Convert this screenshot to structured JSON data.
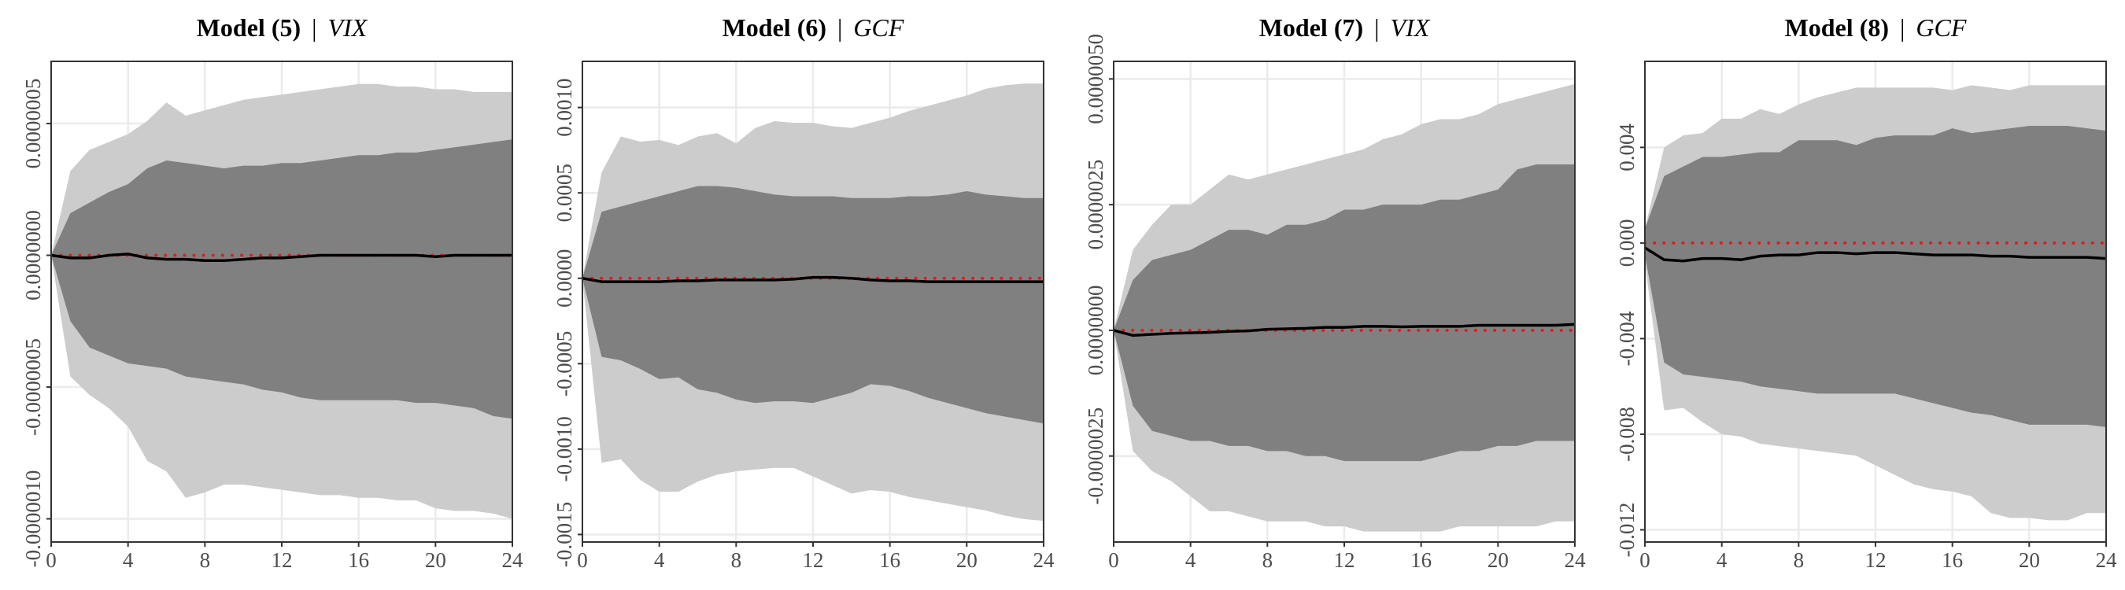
{
  "chart_data": [
    {
      "type": "band",
      "title": "Model (5)",
      "title_separator": "|",
      "title_variable": "VIX",
      "x": [
        0,
        1,
        2,
        3,
        4,
        5,
        6,
        7,
        8,
        9,
        10,
        11,
        12,
        13,
        14,
        15,
        16,
        17,
        18,
        19,
        20,
        21,
        22,
        23,
        24
      ],
      "xlim": [
        0,
        24
      ],
      "xticks": [
        0,
        4,
        8,
        12,
        16,
        20,
        24
      ],
      "ylim": [
        -1.088e-06,
        7.36e-07
      ],
      "yticks": [
        {
          "value": -1e-06,
          "label": "-0.0000010"
        },
        {
          "value": -5e-07,
          "label": "-0.0000005"
        },
        {
          "value": 0,
          "label": "0.0000000"
        },
        {
          "value": 5e-07,
          "label": "0.0000005"
        }
      ],
      "grid": true,
      "reference_line": 0,
      "reference_color": "#e41a1c",
      "series": [
        {
          "color": "#cccccc",
          "upper": [
            0,
            3.2e-07,
            4e-07,
            4.3e-07,
            4.6e-07,
            5.1e-07,
            5.8e-07,
            5.3e-07,
            5.5e-07,
            5.7e-07,
            5.9e-07,
            6e-07,
            6.1e-07,
            6.2e-07,
            6.3e-07,
            6.4e-07,
            6.5e-07,
            6.5e-07,
            6.4e-07,
            6.4e-07,
            6.3e-07,
            6.3e-07,
            6.2e-07,
            6.2e-07,
            6.2e-07
          ],
          "lower": [
            0,
            -4.6e-07,
            -5.3e-07,
            -5.8e-07,
            -6.5e-07,
            -7.8e-07,
            -8.2e-07,
            -9.2e-07,
            -9e-07,
            -8.7e-07,
            -8.7e-07,
            -8.8e-07,
            -8.9e-07,
            -9e-07,
            -9.1e-07,
            -9.1e-07,
            -9.2e-07,
            -9.2e-07,
            -9.3e-07,
            -9.3e-07,
            -9.6e-07,
            -9.7e-07,
            -9.7e-07,
            -9.8e-07,
            -1e-06
          ]
        },
        {
          "color": "#808080",
          "upper": [
            0,
            1.6e-07,
            2e-07,
            2.4e-07,
            2.7e-07,
            3.3e-07,
            3.6e-07,
            3.5e-07,
            3.4e-07,
            3.3e-07,
            3.4e-07,
            3.4e-07,
            3.5e-07,
            3.5e-07,
            3.6e-07,
            3.7e-07,
            3.8e-07,
            3.8e-07,
            3.9e-07,
            3.9e-07,
            4e-07,
            4.1e-07,
            4.2e-07,
            4.3e-07,
            4.4e-07
          ],
          "lower": [
            0,
            -2.5e-07,
            -3.5e-07,
            -3.8e-07,
            -4.1e-07,
            -4.2e-07,
            -4.3e-07,
            -4.6e-07,
            -4.7e-07,
            -4.8e-07,
            -4.9e-07,
            -5.1e-07,
            -5.2e-07,
            -5.4e-07,
            -5.5e-07,
            -5.5e-07,
            -5.5e-07,
            -5.5e-07,
            -5.5e-07,
            -5.6e-07,
            -5.6e-07,
            -5.7e-07,
            -5.8e-07,
            -6.1e-07,
            -6.2e-07
          ]
        },
        {
          "color": "#000000",
          "values": [
            0,
            -1e-08,
            -1e-08,
            0,
            5e-09,
            -1e-08,
            -1.5e-08,
            -1.5e-08,
            -2e-08,
            -2e-08,
            -1.5e-08,
            -1e-08,
            -1e-08,
            -5e-09,
            0,
            0,
            0,
            0,
            0,
            0,
            -5e-09,
            0,
            0,
            0,
            0
          ]
        }
      ]
    },
    {
      "type": "band",
      "title": "Model (6)",
      "title_separator": "|",
      "title_variable": "GCF",
      "x": [
        0,
        1,
        2,
        3,
        4,
        5,
        6,
        7,
        8,
        9,
        10,
        11,
        12,
        13,
        14,
        15,
        16,
        17,
        18,
        19,
        20,
        21,
        22,
        23,
        24
      ],
      "xlim": [
        0,
        24
      ],
      "xticks": [
        0,
        4,
        8,
        12,
        16,
        20,
        24
      ],
      "ylim": [
        -0.001544,
        0.00127
      ],
      "yticks": [
        {
          "value": -0.0015,
          "label": "-0.0015"
        },
        {
          "value": -0.001,
          "label": "-0.0010"
        },
        {
          "value": -0.0005,
          "label": "-0.0005"
        },
        {
          "value": 0,
          "label": "0.0000"
        },
        {
          "value": 0.0005,
          "label": "0.0005"
        },
        {
          "value": 0.001,
          "label": "0.0010"
        }
      ],
      "grid": true,
      "reference_line": 0,
      "reference_color": "#e41a1c",
      "series": [
        {
          "color": "#cccccc",
          "upper": [
            0,
            0.00062,
            0.00083,
            0.0008,
            0.00081,
            0.00078,
            0.00083,
            0.00085,
            0.00079,
            0.00088,
            0.00092,
            0.00091,
            0.00091,
            0.00089,
            0.00088,
            0.00091,
            0.00094,
            0.00098,
            0.00101,
            0.00104,
            0.00107,
            0.00111,
            0.00113,
            0.00114,
            0.00114
          ],
          "lower": [
            0,
            -0.00108,
            -0.00106,
            -0.00118,
            -0.00125,
            -0.00125,
            -0.00119,
            -0.00115,
            -0.00113,
            -0.00112,
            -0.00111,
            -0.00111,
            -0.00116,
            -0.00121,
            -0.00126,
            -0.00124,
            -0.00125,
            -0.00128,
            -0.0013,
            -0.00132,
            -0.00134,
            -0.00136,
            -0.00139,
            -0.00141,
            -0.00142
          ]
        },
        {
          "color": "#808080",
          "upper": [
            0,
            0.00039,
            0.00042,
            0.00045,
            0.00048,
            0.00051,
            0.00054,
            0.00054,
            0.00053,
            0.00051,
            0.00049,
            0.00048,
            0.00048,
            0.00048,
            0.00047,
            0.00047,
            0.00047,
            0.00048,
            0.00048,
            0.00049,
            0.00051,
            0.00049,
            0.00048,
            0.00047,
            0.00047
          ],
          "lower": [
            0,
            -0.00046,
            -0.00048,
            -0.00053,
            -0.00059,
            -0.00058,
            -0.00065,
            -0.00067,
            -0.00071,
            -0.00073,
            -0.00072,
            -0.00072,
            -0.00073,
            -0.0007,
            -0.00067,
            -0.00062,
            -0.00063,
            -0.00066,
            -0.0007,
            -0.00073,
            -0.00076,
            -0.00079,
            -0.00081,
            -0.00083,
            -0.00085
          ]
        },
        {
          "color": "#000000",
          "values": [
            0,
            -2e-05,
            -2e-05,
            -2e-05,
            -2e-05,
            -1.5e-05,
            -1.5e-05,
            -1e-05,
            -1e-05,
            -1e-05,
            -1e-05,
            -5e-06,
            5e-06,
            5e-06,
            0,
            -1e-05,
            -1.5e-05,
            -1.5e-05,
            -2e-05,
            -2e-05,
            -2e-05,
            -2e-05,
            -2e-05,
            -2e-05,
            -2e-05
          ]
        }
      ]
    },
    {
      "type": "band",
      "title": "Model (7)",
      "title_separator": "|",
      "title_variable": "VIX",
      "x": [
        0,
        1,
        2,
        3,
        4,
        5,
        6,
        7,
        8,
        9,
        10,
        11,
        12,
        13,
        14,
        15,
        16,
        17,
        18,
        19,
        20,
        21,
        22,
        23,
        24
      ],
      "xlim": [
        0,
        24
      ],
      "xticks": [
        0,
        4,
        8,
        12,
        16,
        20,
        24
      ],
      "ylim": [
        -4.21e-06,
        5.35e-06
      ],
      "yticks": [
        {
          "value": -2.5e-06,
          "label": "-0.0000025"
        },
        {
          "value": 0,
          "label": "0.0000000"
        },
        {
          "value": 2.5e-06,
          "label": "0.0000025"
        },
        {
          "value": 5e-06,
          "label": "0.0000050"
        }
      ],
      "grid": true,
      "reference_line": 0,
      "reference_color": "#e41a1c",
      "series": [
        {
          "color": "#cccccc",
          "upper": [
            0,
            1.6e-06,
            2.1e-06,
            2.5e-06,
            2.5e-06,
            2.8e-06,
            3.1e-06,
            3e-06,
            3.1e-06,
            3.2e-06,
            3.3e-06,
            3.4e-06,
            3.5e-06,
            3.6e-06,
            3.8e-06,
            3.9e-06,
            4.1e-06,
            4.2e-06,
            4.2e-06,
            4.3e-06,
            4.5e-06,
            4.6e-06,
            4.7e-06,
            4.8e-06,
            4.9e-06
          ],
          "lower": [
            0,
            -2.4e-06,
            -2.8e-06,
            -3e-06,
            -3.3e-06,
            -3.6e-06,
            -3.6e-06,
            -3.7e-06,
            -3.8e-06,
            -3.8e-06,
            -3.8e-06,
            -3.9e-06,
            -3.9e-06,
            -4e-06,
            -4e-06,
            -4e-06,
            -4e-06,
            -4e-06,
            -3.9e-06,
            -3.9e-06,
            -3.9e-06,
            -3.9e-06,
            -3.9e-06,
            -3.8e-06,
            -3.8e-06
          ]
        },
        {
          "color": "#808080",
          "upper": [
            0,
            1e-06,
            1.4e-06,
            1.5e-06,
            1.6e-06,
            1.8e-06,
            2e-06,
            2e-06,
            1.9e-06,
            2.1e-06,
            2.1e-06,
            2.2e-06,
            2.4e-06,
            2.4e-06,
            2.5e-06,
            2.5e-06,
            2.5e-06,
            2.6e-06,
            2.6e-06,
            2.7e-06,
            2.8e-06,
            3.2e-06,
            3.3e-06,
            3.3e-06,
            3.3e-06
          ],
          "lower": [
            0,
            -1.5e-06,
            -2e-06,
            -2.1e-06,
            -2.2e-06,
            -2.2e-06,
            -2.3e-06,
            -2.3e-06,
            -2.4e-06,
            -2.4e-06,
            -2.5e-06,
            -2.5e-06,
            -2.6e-06,
            -2.6e-06,
            -2.6e-06,
            -2.6e-06,
            -2.6e-06,
            -2.5e-06,
            -2.4e-06,
            -2.4e-06,
            -2.3e-06,
            -2.3e-06,
            -2.2e-06,
            -2.2e-06,
            -2.2e-06
          ]
        },
        {
          "color": "#000000",
          "values": [
            0,
            -1e-07,
            -8e-08,
            -6e-08,
            -5e-08,
            -4e-08,
            -2e-08,
            -1e-08,
            2e-08,
            3e-08,
            4e-08,
            6e-08,
            6e-08,
            8e-08,
            8e-08,
            7e-08,
            8e-08,
            8e-08,
            8e-08,
            1e-07,
            1e-07,
            1e-07,
            1e-07,
            1e-07,
            1.2e-07
          ]
        }
      ]
    },
    {
      "type": "band",
      "title": "Model (8)",
      "title_separator": "|",
      "title_variable": "GCF",
      "x": [
        0,
        1,
        2,
        3,
        4,
        5,
        6,
        7,
        8,
        9,
        10,
        11,
        12,
        13,
        14,
        15,
        16,
        17,
        18,
        19,
        20,
        21,
        22,
        23,
        24
      ],
      "xlim": [
        0,
        24
      ],
      "xticks": [
        0,
        4,
        8,
        12,
        16,
        20,
        24
      ],
      "ylim": [
        -0.01251,
        0.0076
      ],
      "yticks": [
        {
          "value": -0.012,
          "label": "-0.012"
        },
        {
          "value": -0.008,
          "label": "-0.008"
        },
        {
          "value": -0.004,
          "label": "-0.004"
        },
        {
          "value": 0,
          "label": "0.000"
        },
        {
          "value": 0.004,
          "label": "0.004"
        }
      ],
      "grid": true,
      "reference_line": 0,
      "reference_color": "#e41a1c",
      "series": [
        {
          "color": "#cccccc",
          "upper": [
            0.0006,
            0.004,
            0.0045,
            0.0046,
            0.0052,
            0.0052,
            0.0056,
            0.0054,
            0.0058,
            0.0061,
            0.0063,
            0.0065,
            0.0065,
            0.0065,
            0.0065,
            0.0065,
            0.0064,
            0.0066,
            0.0065,
            0.0064,
            0.0066,
            0.0066,
            0.0066,
            0.0066,
            0.0066
          ],
          "lower": [
            -0.0008,
            -0.007,
            -0.0069,
            -0.0075,
            -0.008,
            -0.0081,
            -0.0084,
            -0.0085,
            -0.0086,
            -0.0087,
            -0.0088,
            -0.0089,
            -0.0093,
            -0.0097,
            -0.0101,
            -0.0103,
            -0.0104,
            -0.0106,
            -0.0113,
            -0.0115,
            -0.0115,
            -0.0116,
            -0.0116,
            -0.0113,
            -0.0113
          ]
        },
        {
          "color": "#808080",
          "upper": [
            0.0006,
            0.0028,
            0.0032,
            0.0036,
            0.0036,
            0.0037,
            0.0038,
            0.0038,
            0.0043,
            0.0043,
            0.0043,
            0.0041,
            0.0044,
            0.0045,
            0.0045,
            0.0045,
            0.0048,
            0.0046,
            0.0047,
            0.0048,
            0.0049,
            0.0049,
            0.0049,
            0.0048,
            0.0047
          ],
          "lower": [
            -0.0005,
            -0.005,
            -0.0055,
            -0.0056,
            -0.0057,
            -0.0058,
            -0.006,
            -0.0061,
            -0.0062,
            -0.0063,
            -0.0063,
            -0.0063,
            -0.0063,
            -0.0063,
            -0.0065,
            -0.0067,
            -0.0069,
            -0.0071,
            -0.0072,
            -0.0074,
            -0.0076,
            -0.0076,
            -0.0076,
            -0.0076,
            -0.0077
          ]
        },
        {
          "color": "#000000",
          "values": [
            -0.0002,
            -0.0007,
            -0.00075,
            -0.00065,
            -0.00065,
            -0.0007,
            -0.00055,
            -0.0005,
            -0.0005,
            -0.0004,
            -0.0004,
            -0.00045,
            -0.0004,
            -0.0004,
            -0.00045,
            -0.0005,
            -0.0005,
            -0.0005,
            -0.00055,
            -0.00055,
            -0.0006,
            -0.0006,
            -0.0006,
            -0.0006,
            -0.00065
          ]
        }
      ]
    }
  ]
}
